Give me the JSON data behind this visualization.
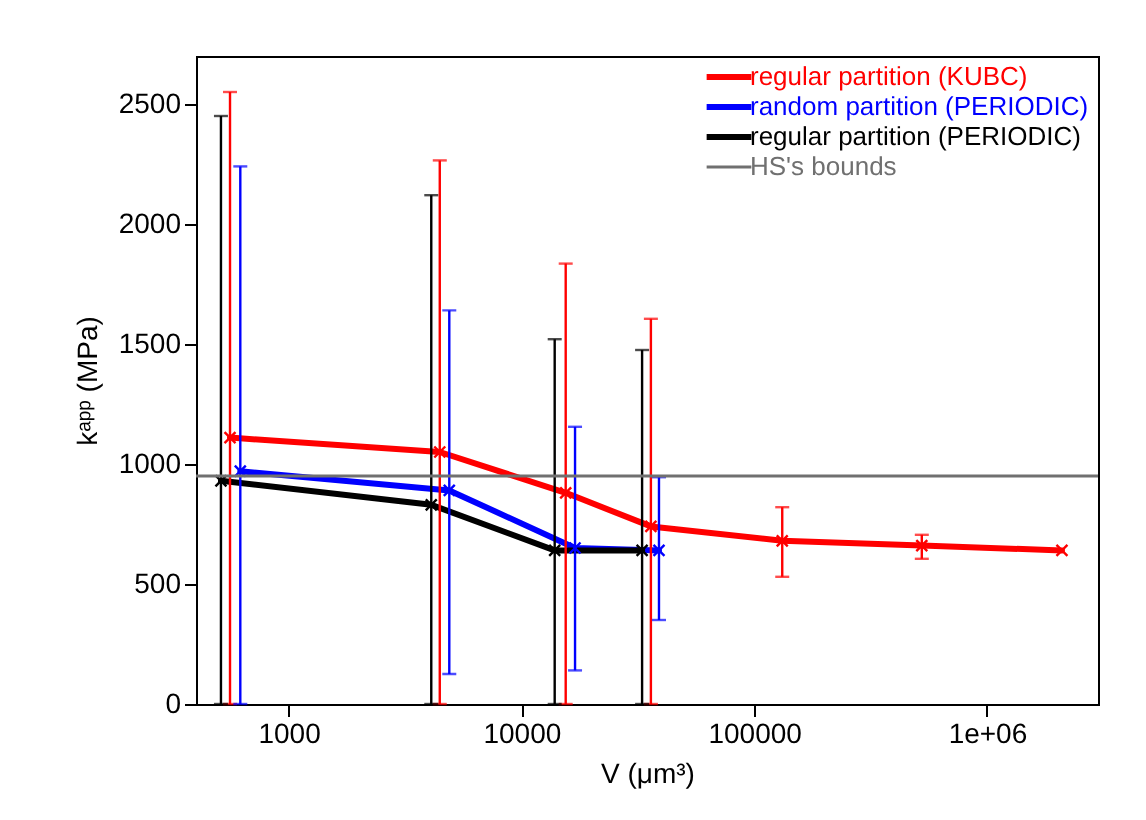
{
  "chart_data": {
    "type": "line",
    "xlabel": "V (μm³)",
    "ylabel": "kᵃᵖᵖ (MPa)",
    "log": "x",
    "xlim": [
      400,
      3000000
    ],
    "ylim": [
      0,
      2700
    ],
    "xticks": [
      1000,
      10000,
      100000,
      {
        "value": 1000000,
        "label": "1e+06"
      }
    ],
    "yticks": [
      0,
      500,
      1000,
      1500,
      2000,
      2500
    ],
    "legend": "top right",
    "marker": "cross",
    "line_style": "solid",
    "series": [
      {
        "name": "regular partition (KUBC)",
        "color": "#ff0000",
        "x": [
          560,
          4460,
          15500,
          36000,
          132000,
          525000,
          2100000
        ],
        "values": [
          1110,
          1050,
          880,
          740,
          680,
          660,
          640
        ],
        "errors": [
          [
            0,
            2550
          ],
          [
            0,
            2265
          ],
          [
            0,
            1835
          ],
          [
            0,
            1605
          ],
          [
            530,
            820
          ],
          [
            605,
            705
          ],
          null
        ]
      },
      {
        "name": "random partition (PERIODIC)",
        "color": "#0000ff",
        "x": [
          620,
          4900,
          17000,
          39000
        ],
        "values": [
          970,
          890,
          650,
          640
        ],
        "errors": [
          [
            0,
            2240
          ],
          [
            125,
            1640
          ],
          [
            140,
            1155
          ],
          [
            350,
            945
          ]
        ]
      },
      {
        "name": "regular partition (PERIODIC)",
        "color": "#000000",
        "x": [
          512,
          4100,
          13900,
          33000
        ],
        "values": [
          930,
          830,
          640,
          640
        ],
        "errors": [
          [
            0,
            2450
          ],
          [
            0,
            2120
          ],
          [
            0,
            1520
          ],
          [
            0,
            1475
          ]
        ]
      }
    ],
    "ref_lines": [
      {
        "axis": "y",
        "value": 950,
        "label": "HS's bounds",
        "color": "#707070"
      }
    ]
  }
}
